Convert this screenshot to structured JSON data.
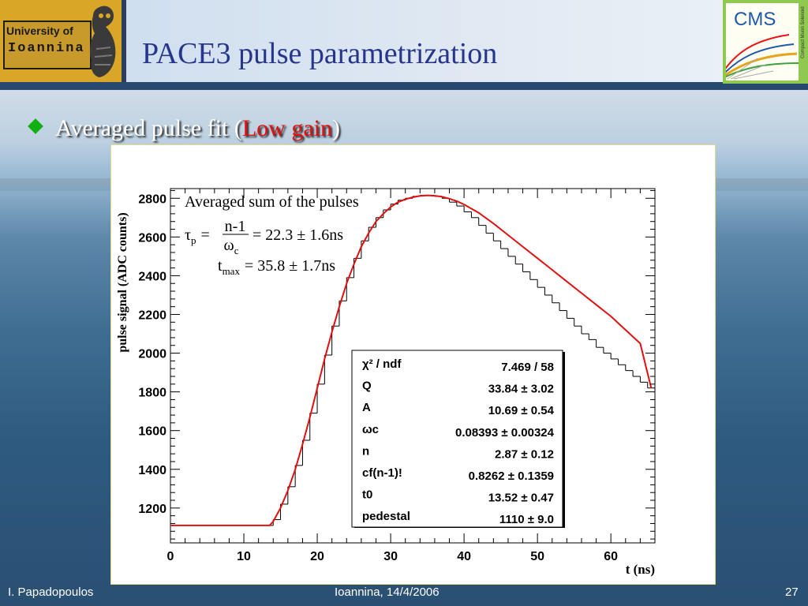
{
  "header": {
    "title": "PACE3 pulse parametrization",
    "logo_left": {
      "line1": "University of",
      "line2": "Ioannina",
      "icon": "owl-emblem-icon"
    },
    "logo_right": {
      "text": "CMS",
      "side_text": "Compact Muon Solenoid",
      "icon": "cms-detector-icon"
    }
  },
  "bullet": {
    "icon": "diamond-bullet-icon",
    "text_before": "Averaged pulse fit (",
    "highlight": "Low gain",
    "text_after": ")",
    "highlight_color": "#e01010"
  },
  "chart_data": {
    "type": "line",
    "title": "",
    "xlabel": "t (ns)",
    "ylabel": "pulse signal (ADC counts)",
    "xlim": [
      0,
      66
    ],
    "ylim": [
      1020,
      2850
    ],
    "xticks": [
      0,
      10,
      20,
      30,
      40,
      50,
      60
    ],
    "yticks": [
      1200,
      1400,
      1600,
      1800,
      2000,
      2200,
      2400,
      2600,
      2800
    ],
    "grid": false,
    "annotations": {
      "label": "Averaged sum of the pulses",
      "tau_lhs": "τ",
      "tau_sub": "p",
      "frac_num": "n-1",
      "frac_den": "ω",
      "frac_den_sub": "c",
      "tau_rhs": "= 22.3 ± 1.6ns",
      "tmax_lhs": "t",
      "tmax_sub": "max",
      "tmax_rhs": "= 35.8 ± 1.7ns"
    },
    "fit_stats": [
      {
        "name": "χ² / ndf",
        "value": "7.469 / 58"
      },
      {
        "name": "Q",
        "value": "33.84 ± 3.02"
      },
      {
        "name": "A",
        "value": "10.69 ± 0.54"
      },
      {
        "name": "ωc",
        "value": "0.08393 ± 0.00324"
      },
      {
        "name": "n",
        "value": "2.87 ± 0.12"
      },
      {
        "name": "cf(n-1)!",
        "value": "0.8262 ± 0.1359"
      },
      {
        "name": "t0",
        "value": "13.52 ± 0.47"
      },
      {
        "name": "pedestal",
        "value": "1110 ± 9.0"
      }
    ],
    "series": [
      {
        "kind": "histogram",
        "color": "#000000",
        "bin_width": 1,
        "x": [
          0,
          1,
          2,
          3,
          4,
          5,
          6,
          7,
          8,
          9,
          10,
          11,
          12,
          13,
          14,
          15,
          16,
          17,
          18,
          19,
          20,
          21,
          22,
          23,
          24,
          25,
          26,
          27,
          28,
          29,
          30,
          31,
          32,
          33,
          34,
          35,
          36,
          37,
          38,
          39,
          40,
          41,
          42,
          43,
          44,
          45,
          46,
          47,
          48,
          49,
          50,
          51,
          52,
          53,
          54,
          55,
          56,
          57,
          58,
          59,
          60,
          61,
          62,
          63,
          64,
          65
        ],
        "values": [
          1110,
          1110,
          1110,
          1110,
          1110,
          1110,
          1110,
          1110,
          1110,
          1110,
          1110,
          1110,
          1110,
          1110,
          1140,
          1220,
          1310,
          1420,
          1550,
          1690,
          1840,
          1990,
          2140,
          2270,
          2390,
          2490,
          2580,
          2650,
          2700,
          2740,
          2770,
          2790,
          2800,
          2810,
          2815,
          2815,
          2810,
          2800,
          2780,
          2760,
          2730,
          2700,
          2660,
          2620,
          2580,
          2540,
          2500,
          2460,
          2420,
          2380,
          2340,
          2300,
          2260,
          2220,
          2180,
          2140,
          2100,
          2070,
          2030,
          2000,
          1970,
          1940,
          1910,
          1880,
          1850,
          1820
        ]
      },
      {
        "kind": "fit",
        "color": "#e01010",
        "x": [
          0,
          13.5,
          14,
          15,
          16,
          17,
          18,
          19,
          20,
          21,
          22,
          23,
          24,
          25,
          26,
          27,
          28,
          29,
          30,
          31,
          32,
          33,
          34,
          35,
          36,
          37,
          38,
          39,
          40,
          42,
          44,
          46,
          48,
          50,
          52,
          54,
          56,
          58,
          60,
          62,
          64,
          65.5
        ],
        "values": [
          1110,
          1110,
          1130,
          1200,
          1290,
          1400,
          1530,
          1670,
          1820,
          1970,
          2110,
          2240,
          2360,
          2460,
          2550,
          2620,
          2680,
          2720,
          2755,
          2780,
          2795,
          2805,
          2812,
          2815,
          2813,
          2808,
          2798,
          2785,
          2768,
          2725,
          2670,
          2610,
          2550,
          2490,
          2430,
          2370,
          2310,
          2250,
          2190,
          2120,
          2050,
          1820
        ]
      }
    ]
  },
  "footer": {
    "author": "I. Papadopoulos",
    "place_date": "Ioannina, 14/4/2006",
    "page": "27"
  }
}
